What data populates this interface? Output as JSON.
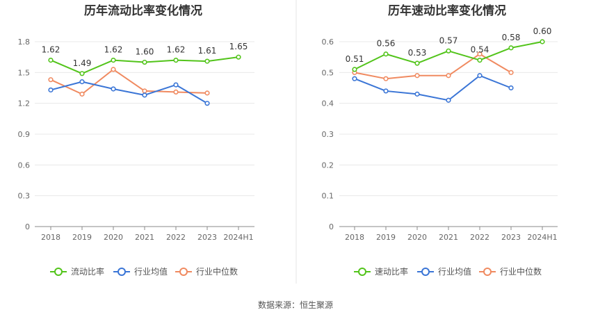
{
  "chart_data": [
    {
      "type": "line",
      "title": "历年流动比率变化情况",
      "categories": [
        "2018",
        "2019",
        "2020",
        "2021",
        "2022",
        "2023",
        "2024H1"
      ],
      "y_ticks": [
        "0",
        "0.3",
        "0.6",
        "0.9",
        "1.2",
        "1.5",
        "1.8"
      ],
      "ylim": [
        0,
        1.8
      ],
      "grid": true,
      "legend_position": "bottom",
      "series": [
        {
          "name": "流动比率",
          "color": "#52c41a",
          "values": [
            1.62,
            1.49,
            1.62,
            1.6,
            1.62,
            1.61,
            1.65
          ],
          "labels": [
            "1.62",
            "1.49",
            "1.62",
            "1.60",
            "1.62",
            "1.61",
            "1.65"
          ]
        },
        {
          "name": "行业均值",
          "color": "#3a75d6",
          "values": [
            1.33,
            1.41,
            1.34,
            1.28,
            1.38,
            1.2,
            null
          ]
        },
        {
          "name": "行业中位数",
          "color": "#f08a60",
          "values": [
            1.43,
            1.29,
            1.53,
            1.32,
            1.31,
            1.3,
            null
          ]
        }
      ]
    },
    {
      "type": "line",
      "title": "历年速动比率变化情况",
      "categories": [
        "2018",
        "2019",
        "2020",
        "2021",
        "2022",
        "2023",
        "2024H1"
      ],
      "y_ticks": [
        "0",
        "0.1",
        "0.2",
        "0.3",
        "0.4",
        "0.5",
        "0.6"
      ],
      "ylim": [
        0,
        0.6
      ],
      "grid": true,
      "legend_position": "bottom",
      "series": [
        {
          "name": "速动比率",
          "color": "#52c41a",
          "values": [
            0.51,
            0.56,
            0.53,
            0.57,
            0.54,
            0.58,
            0.6
          ],
          "labels": [
            "0.51",
            "0.56",
            "0.53",
            "0.57",
            "0.54",
            "0.58",
            "0.60"
          ]
        },
        {
          "name": "行业均值",
          "color": "#3a75d6",
          "values": [
            0.48,
            0.44,
            0.43,
            0.41,
            0.49,
            0.45,
            null
          ]
        },
        {
          "name": "行业中位数",
          "color": "#f08a60",
          "values": [
            0.5,
            0.48,
            0.49,
            0.49,
            0.56,
            0.5,
            null
          ]
        }
      ]
    }
  ],
  "footer": {
    "source": "数据来源：恒生聚源"
  }
}
